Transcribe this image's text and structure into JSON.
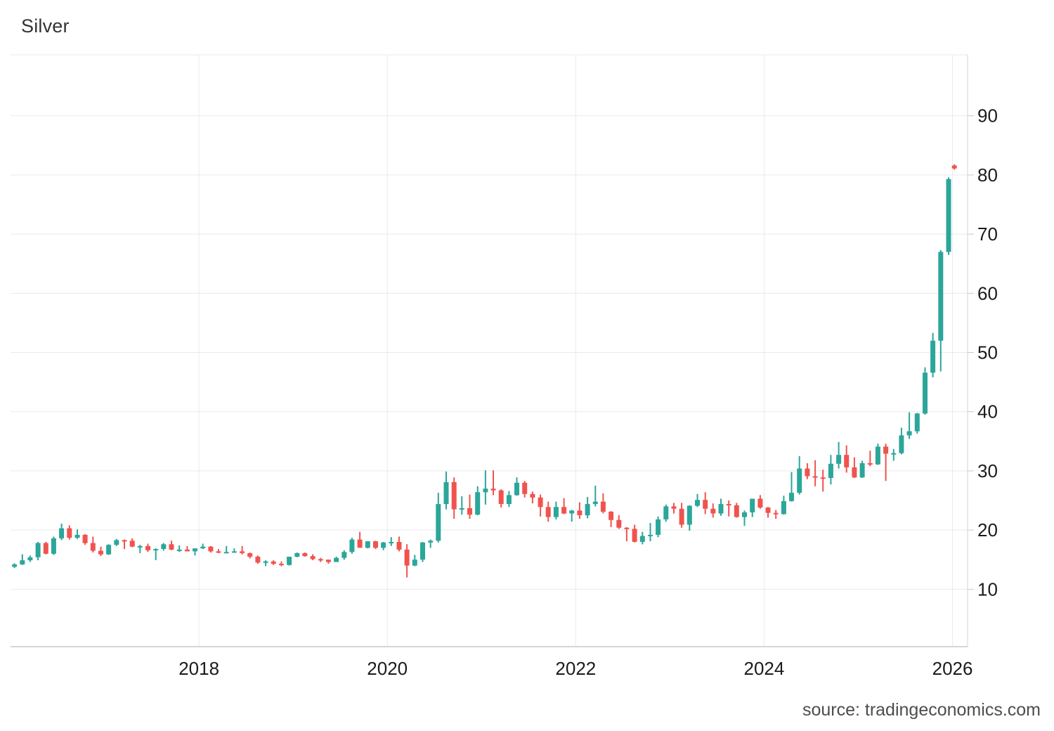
{
  "page": {
    "title": "Silver",
    "source": "source: tradingeconomics.com"
  },
  "colors": {
    "up": "#2BA69A",
    "down": "#F0534E",
    "grid_horizontal": "#e9e9e9",
    "grid_vertical": "#e3ecf4",
    "axis_line": "#d6d6d6",
    "plot_top_line": "#e8e8e8",
    "tick_mark": "#c9c9c9",
    "axis_label": "#1b1b1b",
    "title_text": "#333333",
    "source_text": "#4d4d4d",
    "background": "#ffffff"
  },
  "chart_data": {
    "type": "candlestick",
    "title": "Silver",
    "interval": "monthly",
    "start": "2016-01",
    "grid": "on",
    "legend": "none",
    "x_ticks": [
      2018,
      2020,
      2022,
      2024,
      2026
    ],
    "y_ticks": [
      10,
      20,
      30,
      40,
      50,
      60,
      70,
      80,
      90
    ],
    "x_range": [
      2016.0,
      2026.16
    ],
    "y_range": [
      0.3,
      100.3
    ],
    "ohlc": [
      [
        13.8,
        14.4,
        13.6,
        14.2
      ],
      [
        14.2,
        15.9,
        14.1,
        14.9
      ],
      [
        14.9,
        15.7,
        14.6,
        15.4
      ],
      [
        15.4,
        18.0,
        14.9,
        17.8
      ],
      [
        17.8,
        18.0,
        15.9,
        16.0
      ],
      [
        16.0,
        18.9,
        15.8,
        18.6
      ],
      [
        18.6,
        21.1,
        18.3,
        20.3
      ],
      [
        20.3,
        20.8,
        18.4,
        18.7
      ],
      [
        18.7,
        20.1,
        18.5,
        19.2
      ],
      [
        19.2,
        19.3,
        17.5,
        17.8
      ],
      [
        17.8,
        18.9,
        16.2,
        16.5
      ],
      [
        16.5,
        17.2,
        15.6,
        15.9
      ],
      [
        15.9,
        17.6,
        15.8,
        17.5
      ],
      [
        17.5,
        18.5,
        17.3,
        18.3
      ],
      [
        18.3,
        18.4,
        16.8,
        18.2
      ],
      [
        18.2,
        18.6,
        17.1,
        17.2
      ],
      [
        17.2,
        17.5,
        16.1,
        17.3
      ],
      [
        17.3,
        17.7,
        16.3,
        16.6
      ],
      [
        16.6,
        16.9,
        14.9,
        16.8
      ],
      [
        16.8,
        17.8,
        16.5,
        17.6
      ],
      [
        17.6,
        18.2,
        16.6,
        16.7
      ],
      [
        16.7,
        17.4,
        16.3,
        16.7
      ],
      [
        16.7,
        17.3,
        16.4,
        16.4
      ],
      [
        16.4,
        16.9,
        15.7,
        16.9
      ],
      [
        16.9,
        17.7,
        16.8,
        17.2
      ],
      [
        17.2,
        17.3,
        16.2,
        16.4
      ],
      [
        16.4,
        16.8,
        16.1,
        16.3
      ],
      [
        16.3,
        17.3,
        16.1,
        16.3
      ],
      [
        16.3,
        16.9,
        16.2,
        16.4
      ],
      [
        16.4,
        17.3,
        15.9,
        16.1
      ],
      [
        16.1,
        16.2,
        15.2,
        15.5
      ],
      [
        15.5,
        15.7,
        14.3,
        14.5
      ],
      [
        14.5,
        14.9,
        13.9,
        14.7
      ],
      [
        14.7,
        14.9,
        14.1,
        14.3
      ],
      [
        14.3,
        14.7,
        13.9,
        14.1
      ],
      [
        14.1,
        15.5,
        14.0,
        15.5
      ],
      [
        15.5,
        16.2,
        15.4,
        16.1
      ],
      [
        16.1,
        16.2,
        15.5,
        15.6
      ],
      [
        15.6,
        15.9,
        14.9,
        15.1
      ],
      [
        15.1,
        15.3,
        14.6,
        15.0
      ],
      [
        15.0,
        15.0,
        14.3,
        14.6
      ],
      [
        14.6,
        15.5,
        14.6,
        15.3
      ],
      [
        15.3,
        16.6,
        15.0,
        16.3
      ],
      [
        16.3,
        18.7,
        16.0,
        18.4
      ],
      [
        18.4,
        19.7,
        17.5,
        17.0
      ],
      [
        17.0,
        18.1,
        16.9,
        18.1
      ],
      [
        18.1,
        18.2,
        16.8,
        17.0
      ],
      [
        17.0,
        18.0,
        16.6,
        17.9
      ],
      [
        17.9,
        18.8,
        17.3,
        18.0
      ],
      [
        18.0,
        18.9,
        16.4,
        16.7
      ],
      [
        16.7,
        17.6,
        12.0,
        14.0
      ],
      [
        14.0,
        15.8,
        13.9,
        15.0
      ],
      [
        15.0,
        18.0,
        14.6,
        17.9
      ],
      [
        17.9,
        18.4,
        17.0,
        18.2
      ],
      [
        18.2,
        26.3,
        17.9,
        24.4
      ],
      [
        24.4,
        29.9,
        23.5,
        28.1
      ],
      [
        28.1,
        28.9,
        21.9,
        23.5
      ],
      [
        23.5,
        25.7,
        22.6,
        23.7
      ],
      [
        23.7,
        26.0,
        21.9,
        22.6
      ],
      [
        22.6,
        27.4,
        22.5,
        26.4
      ],
      [
        26.4,
        30.1,
        24.3,
        27.0
      ],
      [
        27.0,
        30.1,
        25.9,
        26.7
      ],
      [
        26.7,
        26.9,
        23.8,
        24.4
      ],
      [
        24.4,
        26.6,
        23.9,
        25.9
      ],
      [
        25.9,
        28.9,
        25.8,
        28.0
      ],
      [
        28.0,
        28.3,
        25.5,
        26.1
      ],
      [
        26.1,
        26.5,
        24.5,
        25.5
      ],
      [
        25.5,
        26.0,
        22.3,
        23.9
      ],
      [
        23.9,
        24.8,
        21.4,
        22.2
      ],
      [
        22.2,
        24.8,
        21.8,
        23.9
      ],
      [
        23.9,
        25.4,
        22.7,
        22.8
      ],
      [
        22.8,
        23.4,
        21.4,
        23.3
      ],
      [
        23.3,
        24.7,
        21.9,
        22.5
      ],
      [
        22.5,
        25.6,
        22.0,
        24.4
      ],
      [
        24.4,
        27.5,
        24.0,
        24.8
      ],
      [
        24.8,
        26.2,
        22.8,
        23.1
      ],
      [
        23.1,
        23.2,
        20.5,
        21.7
      ],
      [
        21.7,
        22.5,
        20.2,
        20.4
      ],
      [
        20.4,
        20.5,
        18.1,
        20.2
      ],
      [
        20.2,
        20.9,
        17.9,
        18.0
      ],
      [
        18.0,
        19.7,
        17.6,
        19.0
      ],
      [
        19.0,
        21.2,
        18.1,
        19.2
      ],
      [
        19.2,
        22.3,
        18.8,
        21.8
      ],
      [
        21.8,
        24.3,
        21.4,
        24.0
      ],
      [
        24.0,
        24.6,
        22.8,
        23.6
      ],
      [
        23.6,
        24.6,
        20.4,
        20.9
      ],
      [
        20.9,
        24.2,
        19.9,
        24.1
      ],
      [
        24.1,
        26.1,
        23.9,
        25.1
      ],
      [
        25.1,
        26.4,
        22.7,
        23.6
      ],
      [
        23.6,
        24.5,
        22.1,
        22.8
      ],
      [
        22.8,
        25.3,
        22.4,
        24.4
      ],
      [
        24.4,
        25.0,
        22.3,
        24.2
      ],
      [
        24.2,
        24.6,
        22.1,
        22.2
      ],
      [
        22.2,
        23.3,
        20.7,
        23.0
      ],
      [
        23.0,
        25.3,
        22.2,
        25.3
      ],
      [
        25.3,
        25.9,
        23.6,
        23.8
      ],
      [
        23.8,
        23.9,
        22.1,
        22.9
      ],
      [
        22.9,
        23.4,
        21.9,
        22.7
      ],
      [
        22.7,
        25.8,
        22.6,
        24.9
      ],
      [
        24.9,
        29.8,
        24.8,
        26.3
      ],
      [
        26.3,
        32.5,
        26.0,
        30.4
      ],
      [
        30.4,
        31.3,
        28.6,
        29.1
      ],
      [
        29.1,
        31.8,
        27.4,
        28.9
      ],
      [
        28.9,
        30.2,
        26.5,
        28.8
      ],
      [
        28.8,
        32.7,
        27.7,
        31.2
      ],
      [
        31.2,
        34.9,
        30.4,
        32.7
      ],
      [
        32.7,
        34.3,
        29.7,
        30.6
      ],
      [
        30.6,
        32.3,
        28.8,
        28.9
      ],
      [
        28.9,
        31.7,
        28.8,
        31.3
      ],
      [
        31.3,
        33.4,
        30.8,
        31.1
      ],
      [
        31.1,
        34.6,
        31.0,
        34.1
      ],
      [
        34.1,
        34.6,
        28.3,
        32.9
      ],
      [
        32.9,
        33.7,
        31.7,
        33.0
      ],
      [
        33.0,
        37.3,
        32.8,
        36.0
      ],
      [
        36.0,
        39.9,
        35.4,
        36.7
      ],
      [
        36.7,
        39.8,
        36.3,
        39.7
      ],
      [
        39.7,
        47.5,
        39.5,
        46.6
      ],
      [
        46.6,
        53.3,
        45.8,
        52.0
      ],
      [
        52.0,
        67.3,
        46.8,
        67.0
      ],
      [
        67.0,
        79.6,
        66.5,
        79.3
      ]
    ],
    "last_marker": {
      "time": 2026.02,
      "open": 81.6,
      "high": 81.8,
      "low": 80.9,
      "close": 81.1
    }
  }
}
